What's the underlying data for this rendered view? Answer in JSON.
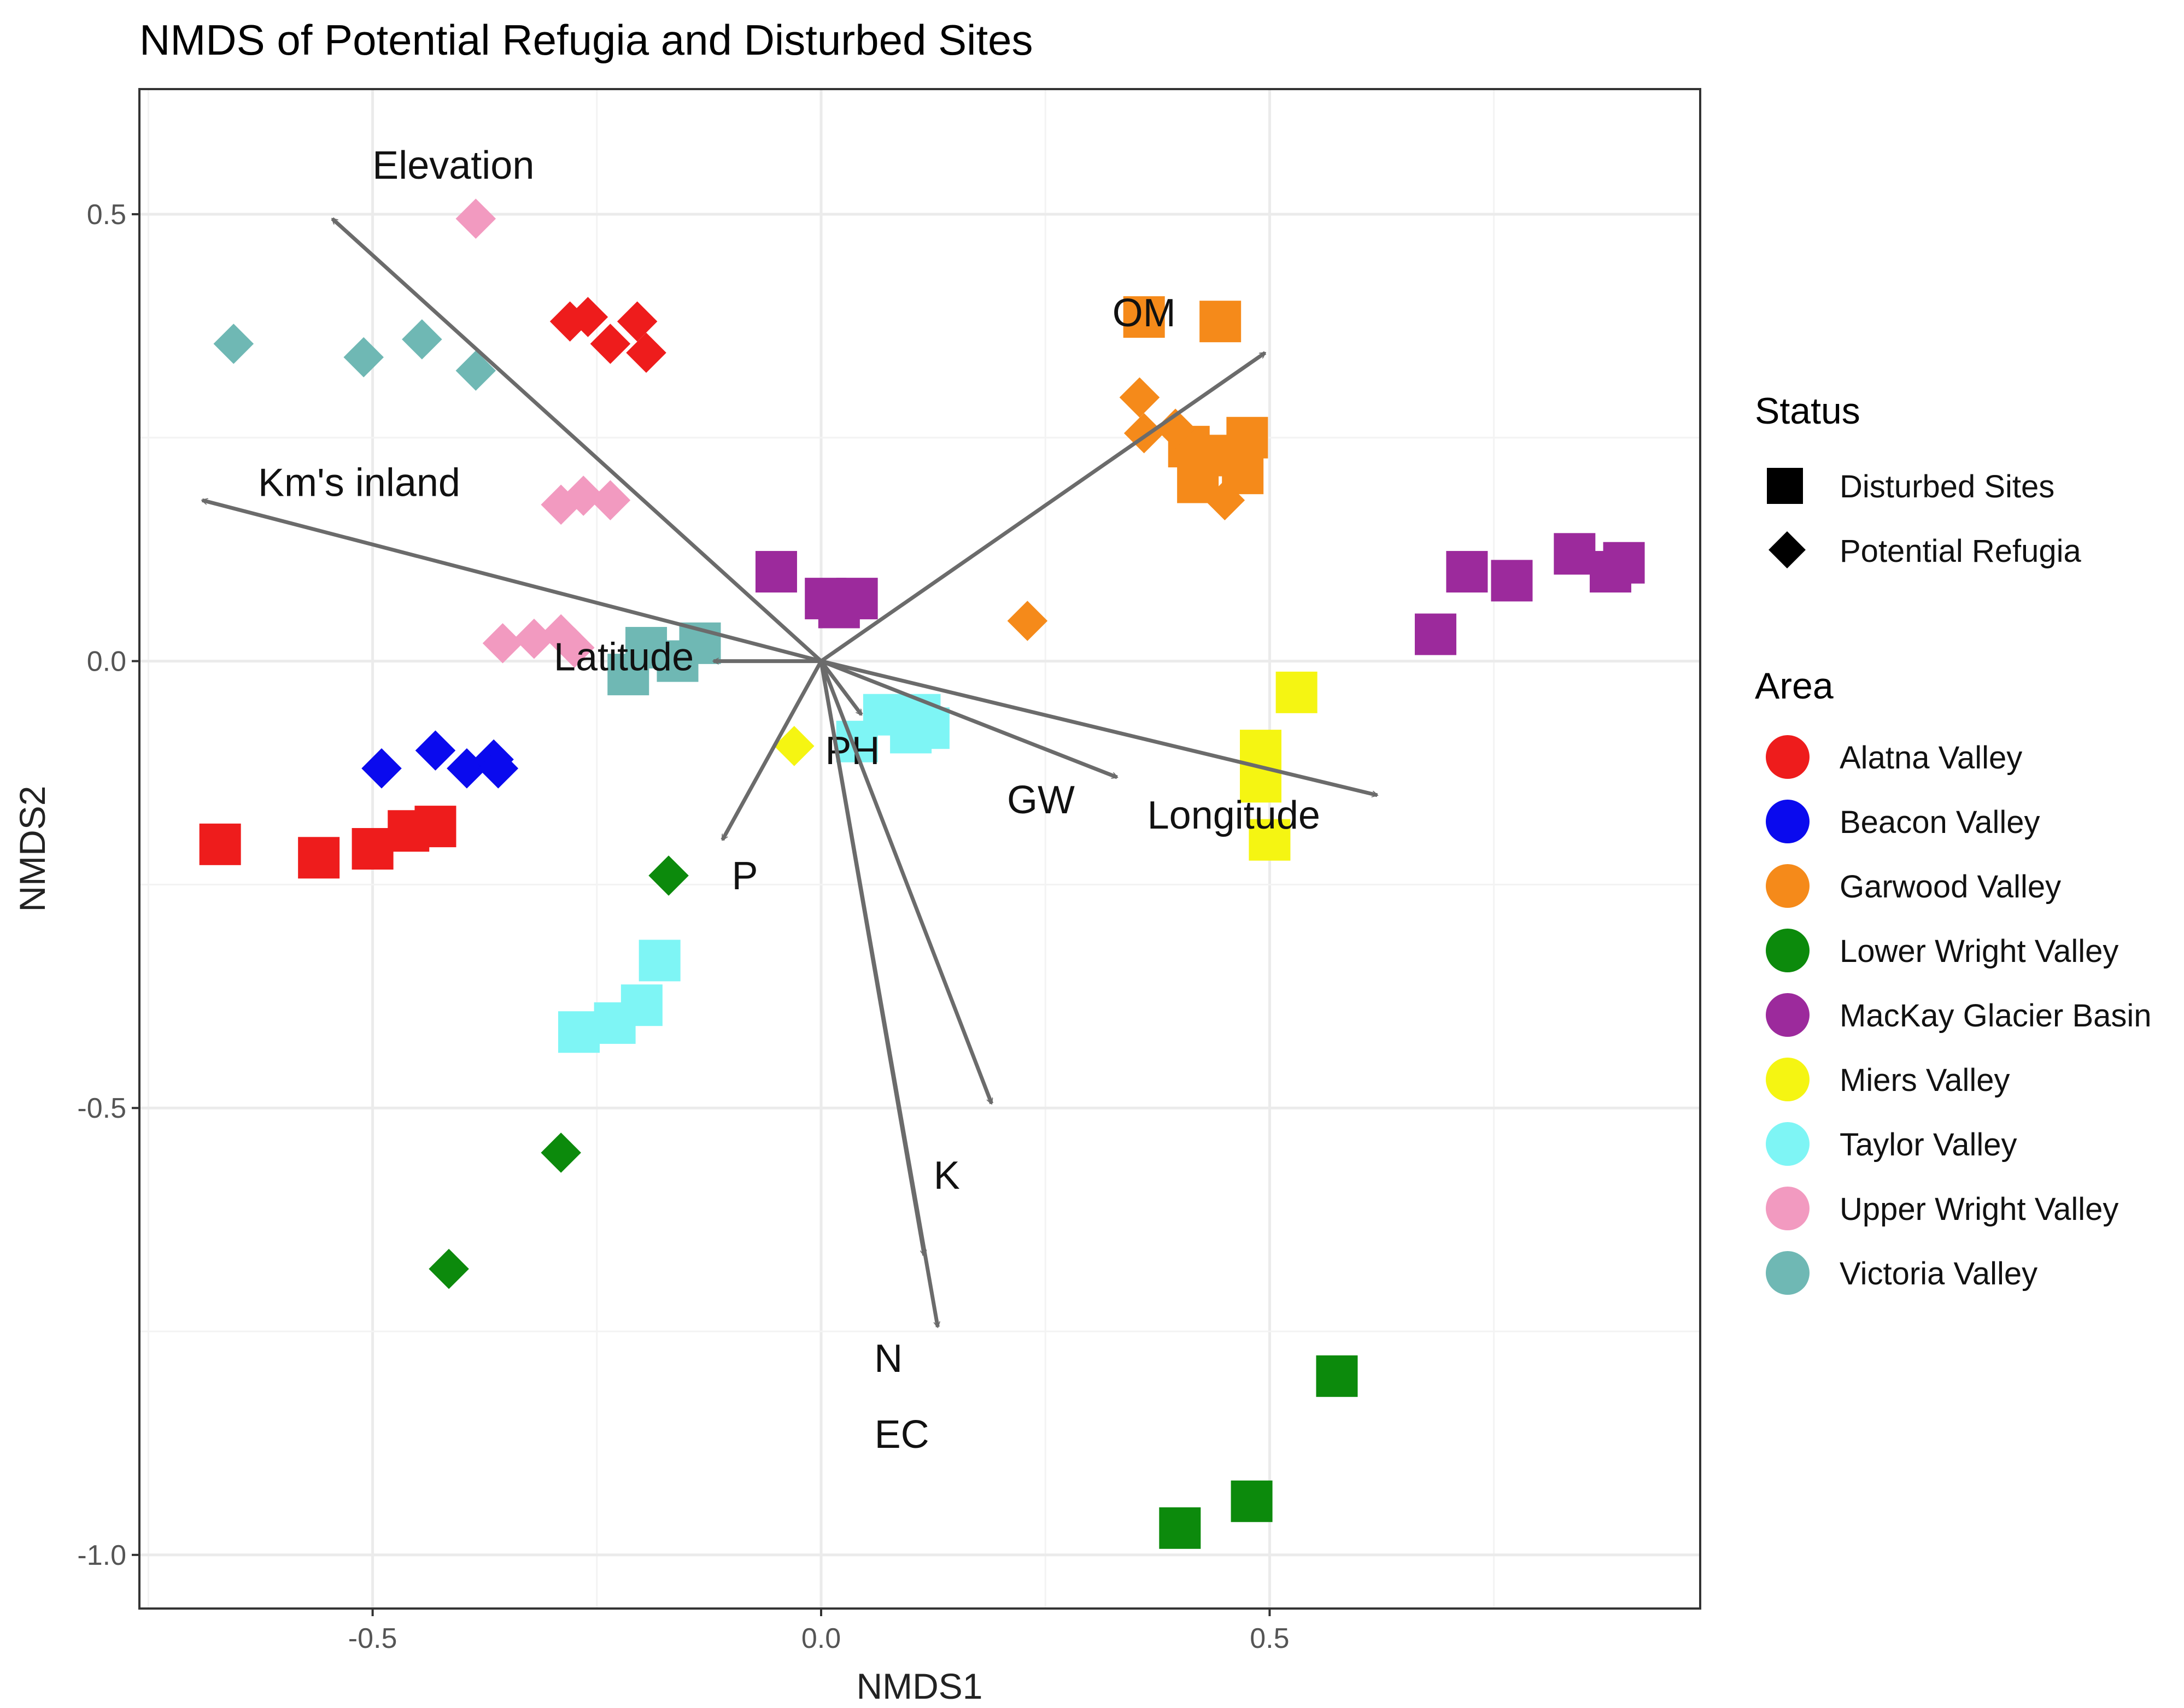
{
  "chart_data": {
    "type": "scatter",
    "title": "NMDS of Potential Refugia and Disturbed Sites",
    "xlabel": "NMDS1",
    "ylabel": "NMDS2",
    "xlim": [
      -0.76,
      0.98
    ],
    "ylim": [
      -1.06,
      0.64
    ],
    "x_ticks": [
      -0.5,
      0.0,
      0.5
    ],
    "x_tick_labels": [
      "-0.5",
      "0.0",
      "0.5"
    ],
    "y_ticks": [
      0.5,
      0.0,
      -0.5,
      -1.0
    ],
    "y_tick_labels": [
      "0.5",
      "0.0",
      "-0.5",
      "-1.0"
    ],
    "grid": true,
    "legend_position": "right",
    "legends": {
      "status": {
        "title": "Status",
        "items": [
          {
            "label": "Disturbed Sites",
            "shape": "square"
          },
          {
            "label": "Potential Refugia",
            "shape": "diamond"
          }
        ]
      },
      "area": {
        "title": "Area",
        "items": [
          {
            "label": "Alatna Valley",
            "color": "#ee1c1c"
          },
          {
            "label": "Beacon Valley",
            "color": "#0a0aee"
          },
          {
            "label": "Garwood Valley",
            "color": "#f58a1a"
          },
          {
            "label": "Lower Wright Valley",
            "color": "#0c8a0c"
          },
          {
            "label": "MacKay Glacier Basin",
            "color": "#9c2a9c"
          },
          {
            "label": "Miers Valley",
            "color": "#f5f512"
          },
          {
            "label": "Taylor Valley",
            "color": "#7ef5f5"
          },
          {
            "label": "Upper Wright Valley",
            "color": "#f29ac0"
          },
          {
            "label": "Victoria Valley",
            "color": "#6fb8b4"
          }
        ]
      }
    },
    "vectors": [
      {
        "label": "Elevation",
        "end": [
          -0.545,
          0.495
        ],
        "label_at": [
          -0.41,
          0.555
        ]
      },
      {
        "label": "OM",
        "end": [
          0.495,
          0.345
        ],
        "label_at": [
          0.36,
          0.39
        ]
      },
      {
        "label": "Km's inland",
        "end": [
          -0.69,
          0.18
        ],
        "label_at": [
          -0.515,
          0.2
        ]
      },
      {
        "label": "Latitude",
        "end": [
          -0.12,
          0.0
        ],
        "label_at": [
          -0.22,
          0.005
        ]
      },
      {
        "label": "PH",
        "end": [
          0.045,
          -0.06
        ],
        "label_at": [
          0.035,
          -0.1
        ]
      },
      {
        "label": "GW",
        "end": [
          0.33,
          -0.13
        ],
        "label_at": [
          0.245,
          -0.155
        ]
      },
      {
        "label": "Longitude",
        "end": [
          0.62,
          -0.15
        ],
        "label_at": [
          0.46,
          -0.172
        ]
      },
      {
        "label": "P",
        "end": [
          -0.11,
          -0.2
        ],
        "label_at": [
          -0.085,
          -0.24
        ]
      },
      {
        "label": "K",
        "end": [
          0.19,
          -0.495
        ],
        "label_at": [
          0.14,
          -0.575
        ]
      },
      {
        "label": "N",
        "end": [
          0.115,
          -0.665
        ],
        "label_at": [
          0.075,
          -0.78
        ]
      },
      {
        "label": "EC",
        "end": [
          0.13,
          -0.745
        ],
        "label_at": [
          0.09,
          -0.865
        ]
      }
    ],
    "series": [
      {
        "area": "Alatna Valley",
        "points": [
          {
            "x": -0.67,
            "y": -0.205,
            "status": "Disturbed Sites"
          },
          {
            "x": -0.56,
            "y": -0.22,
            "status": "Disturbed Sites"
          },
          {
            "x": -0.5,
            "y": -0.21,
            "status": "Disturbed Sites"
          },
          {
            "x": -0.46,
            "y": -0.19,
            "status": "Disturbed Sites"
          },
          {
            "x": -0.43,
            "y": -0.185,
            "status": "Disturbed Sites"
          },
          {
            "x": -0.28,
            "y": 0.38,
            "status": "Potential Refugia"
          },
          {
            "x": -0.26,
            "y": 0.385,
            "status": "Potential Refugia"
          },
          {
            "x": -0.235,
            "y": 0.355,
            "status": "Potential Refugia"
          },
          {
            "x": -0.205,
            "y": 0.38,
            "status": "Potential Refugia"
          },
          {
            "x": -0.195,
            "y": 0.345,
            "status": "Potential Refugia"
          }
        ]
      },
      {
        "area": "Beacon Valley",
        "points": [
          {
            "x": -0.49,
            "y": -0.12,
            "status": "Potential Refugia"
          },
          {
            "x": -0.43,
            "y": -0.1,
            "status": "Potential Refugia"
          },
          {
            "x": -0.395,
            "y": -0.12,
            "status": "Potential Refugia"
          },
          {
            "x": -0.365,
            "y": -0.11,
            "status": "Potential Refugia"
          },
          {
            "x": -0.36,
            "y": -0.12,
            "status": "Potential Refugia"
          }
        ]
      },
      {
        "area": "Garwood Valley",
        "points": [
          {
            "x": 0.36,
            "y": 0.385,
            "status": "Disturbed Sites"
          },
          {
            "x": 0.445,
            "y": 0.38,
            "status": "Disturbed Sites"
          },
          {
            "x": 0.41,
            "y": 0.24,
            "status": "Disturbed Sites"
          },
          {
            "x": 0.44,
            "y": 0.23,
            "status": "Disturbed Sites"
          },
          {
            "x": 0.475,
            "y": 0.25,
            "status": "Disturbed Sites"
          },
          {
            "x": 0.42,
            "y": 0.2,
            "status": "Disturbed Sites"
          },
          {
            "x": 0.47,
            "y": 0.21,
            "status": "Disturbed Sites"
          },
          {
            "x": 0.355,
            "y": 0.295,
            "status": "Potential Refugia"
          },
          {
            "x": 0.36,
            "y": 0.255,
            "status": "Potential Refugia"
          },
          {
            "x": 0.395,
            "y": 0.26,
            "status": "Potential Refugia"
          },
          {
            "x": 0.45,
            "y": 0.18,
            "status": "Potential Refugia"
          },
          {
            "x": 0.23,
            "y": 0.045,
            "status": "Potential Refugia"
          }
        ]
      },
      {
        "area": "Lower Wright Valley",
        "points": [
          {
            "x": 0.4,
            "y": -0.97,
            "status": "Disturbed Sites"
          },
          {
            "x": 0.48,
            "y": -0.94,
            "status": "Disturbed Sites"
          },
          {
            "x": 0.575,
            "y": -0.8,
            "status": "Disturbed Sites"
          },
          {
            "x": -0.17,
            "y": -0.24,
            "status": "Potential Refugia"
          },
          {
            "x": -0.29,
            "y": -0.55,
            "status": "Potential Refugia"
          },
          {
            "x": -0.415,
            "y": -0.68,
            "status": "Potential Refugia"
          }
        ]
      },
      {
        "area": "MacKay Glacier Basin",
        "points": [
          {
            "x": -0.05,
            "y": 0.1,
            "status": "Disturbed Sites"
          },
          {
            "x": 0.005,
            "y": 0.07,
            "status": "Disturbed Sites"
          },
          {
            "x": 0.02,
            "y": 0.06,
            "status": "Disturbed Sites"
          },
          {
            "x": 0.04,
            "y": 0.07,
            "status": "Disturbed Sites"
          },
          {
            "x": 0.685,
            "y": 0.03,
            "status": "Disturbed Sites"
          },
          {
            "x": 0.72,
            "y": 0.1,
            "status": "Disturbed Sites"
          },
          {
            "x": 0.77,
            "y": 0.09,
            "status": "Disturbed Sites"
          },
          {
            "x": 0.84,
            "y": 0.12,
            "status": "Disturbed Sites"
          },
          {
            "x": 0.88,
            "y": 0.1,
            "status": "Disturbed Sites"
          },
          {
            "x": 0.895,
            "y": 0.11,
            "status": "Disturbed Sites"
          }
        ]
      },
      {
        "area": "Miers Valley",
        "points": [
          {
            "x": 0.53,
            "y": -0.035,
            "status": "Disturbed Sites"
          },
          {
            "x": 0.49,
            "y": -0.1,
            "status": "Disturbed Sites"
          },
          {
            "x": 0.49,
            "y": -0.135,
            "status": "Disturbed Sites"
          },
          {
            "x": 0.5,
            "y": -0.2,
            "status": "Disturbed Sites"
          },
          {
            "x": -0.03,
            "y": -0.095,
            "status": "Potential Refugia"
          }
        ]
      },
      {
        "area": "Taylor Valley",
        "points": [
          {
            "x": 0.04,
            "y": -0.09,
            "status": "Disturbed Sites"
          },
          {
            "x": 0.07,
            "y": -0.06,
            "status": "Disturbed Sites"
          },
          {
            "x": 0.1,
            "y": -0.08,
            "status": "Disturbed Sites"
          },
          {
            "x": 0.11,
            "y": -0.06,
            "status": "Disturbed Sites"
          },
          {
            "x": 0.12,
            "y": -0.075,
            "status": "Disturbed Sites"
          },
          {
            "x": -0.18,
            "y": -0.335,
            "status": "Disturbed Sites"
          },
          {
            "x": -0.2,
            "y": -0.385,
            "status": "Disturbed Sites"
          },
          {
            "x": -0.23,
            "y": -0.405,
            "status": "Disturbed Sites"
          },
          {
            "x": -0.27,
            "y": -0.415,
            "status": "Disturbed Sites"
          }
        ]
      },
      {
        "area": "Upper Wright Valley",
        "points": [
          {
            "x": -0.385,
            "y": 0.495,
            "status": "Potential Refugia"
          },
          {
            "x": -0.29,
            "y": 0.175,
            "status": "Potential Refugia"
          },
          {
            "x": -0.265,
            "y": 0.185,
            "status": "Potential Refugia"
          },
          {
            "x": -0.235,
            "y": 0.18,
            "status": "Potential Refugia"
          },
          {
            "x": -0.355,
            "y": 0.02,
            "status": "Potential Refugia"
          },
          {
            "x": -0.32,
            "y": 0.025,
            "status": "Potential Refugia"
          },
          {
            "x": -0.29,
            "y": 0.03,
            "status": "Potential Refugia"
          },
          {
            "x": -0.275,
            "y": 0.015,
            "status": "Potential Refugia"
          }
        ]
      },
      {
        "area": "Victoria Valley",
        "points": [
          {
            "x": -0.215,
            "y": -0.015,
            "status": "Disturbed Sites"
          },
          {
            "x": -0.195,
            "y": 0.015,
            "status": "Disturbed Sites"
          },
          {
            "x": -0.16,
            "y": 0.0,
            "status": "Disturbed Sites"
          },
          {
            "x": -0.135,
            "y": 0.02,
            "status": "Disturbed Sites"
          },
          {
            "x": -0.655,
            "y": 0.355,
            "status": "Potential Refugia"
          },
          {
            "x": -0.51,
            "y": 0.34,
            "status": "Potential Refugia"
          },
          {
            "x": -0.445,
            "y": 0.36,
            "status": "Potential Refugia"
          },
          {
            "x": -0.385,
            "y": 0.325,
            "status": "Potential Refugia"
          }
        ]
      }
    ]
  }
}
